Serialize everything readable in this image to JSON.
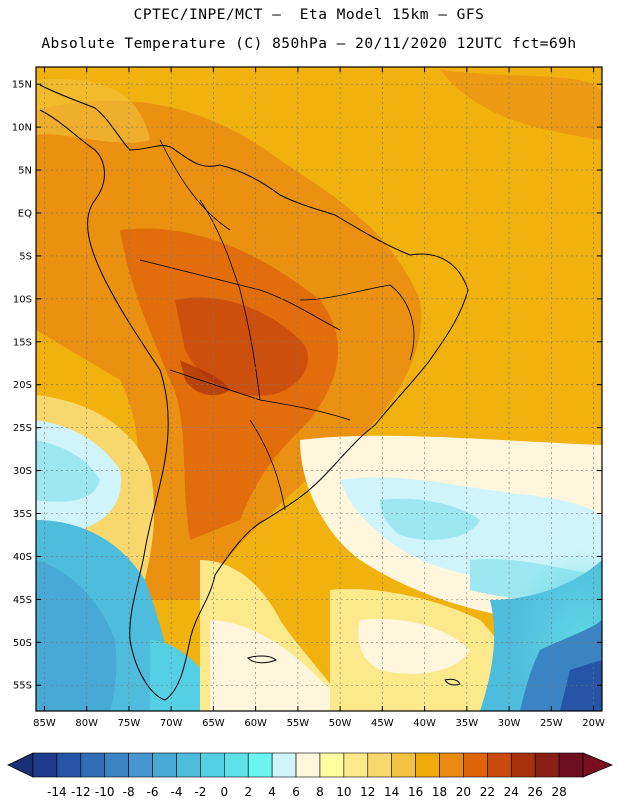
{
  "header": {
    "title_line1": "CPTEC/INPE/MCT –  Eta Model 15km – GFS",
    "title_line2": "Absolute Temperature (C) 850hPa – 20/11/2020 12UTC fct=69h"
  },
  "map": {
    "lon_range": [
      -86,
      -19
    ],
    "lat_range": [
      -58,
      17
    ],
    "lat_ticks": [
      {
        "lat": 15,
        "label": "15N"
      },
      {
        "lat": 10,
        "label": "10N"
      },
      {
        "lat": 5,
        "label": "5N"
      },
      {
        "lat": 0,
        "label": "EQ"
      },
      {
        "lat": -5,
        "label": "5S"
      },
      {
        "lat": -10,
        "label": "10S"
      },
      {
        "lat": -15,
        "label": "15S"
      },
      {
        "lat": -20,
        "label": "20S"
      },
      {
        "lat": -25,
        "label": "25S"
      },
      {
        "lat": -30,
        "label": "30S"
      },
      {
        "lat": -35,
        "label": "35S"
      },
      {
        "lat": -40,
        "label": "40S"
      },
      {
        "lat": -45,
        "label": "45S"
      },
      {
        "lat": -50,
        "label": "50S"
      },
      {
        "lat": -55,
        "label": "55S"
      }
    ],
    "lon_ticks": [
      {
        "lon": -85,
        "label": "85W"
      },
      {
        "lon": -80,
        "label": "80W"
      },
      {
        "lon": -75,
        "label": "75W"
      },
      {
        "lon": -70,
        "label": "70W"
      },
      {
        "lon": -65,
        "label": "65W"
      },
      {
        "lon": -60,
        "label": "60W"
      },
      {
        "lon": -55,
        "label": "55W"
      },
      {
        "lon": -50,
        "label": "50W"
      },
      {
        "lon": -45,
        "label": "45W"
      },
      {
        "lon": -40,
        "label": "40W"
      },
      {
        "lon": -35,
        "label": "35W"
      },
      {
        "lon": -30,
        "label": "30W"
      },
      {
        "lon": -25,
        "label": "25W"
      },
      {
        "lon": -20,
        "label": "20W"
      }
    ]
  },
  "colorbar": {
    "labels": [
      "-14",
      "-12",
      "-10",
      "-8",
      "-6",
      "-4",
      "-2",
      "0",
      "2",
      "4",
      "6",
      "8",
      "10",
      "12",
      "14",
      "16",
      "18",
      "20",
      "22",
      "24",
      "26",
      "28"
    ],
    "colors": [
      "#1d3a8c",
      "#2654a6",
      "#2f6db5",
      "#3b84c3",
      "#4697cf",
      "#49a9d6",
      "#4ebcdc",
      "#55cfe3",
      "#5fe1ea",
      "#6af5f3",
      "#cff4fb",
      "#fff6dd",
      "#ffffa0",
      "#fbe98b",
      "#f8d86c",
      "#f2c240",
      "#f1ab08",
      "#e98b12",
      "#e0650a",
      "#c94a0d",
      "#a8310c",
      "#8a1f14",
      "#6e0f1f"
    ],
    "under_color": "#1a3075",
    "over_color": "#7a0f22"
  }
}
